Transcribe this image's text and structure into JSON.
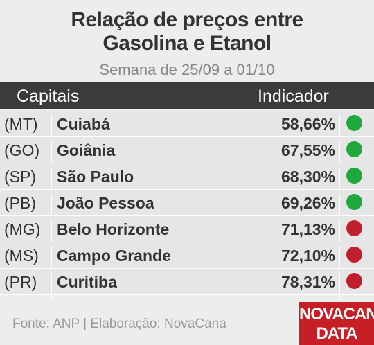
{
  "header": {
    "title_lines": [
      "Relação de preços entre",
      "Gasolina e Etanol"
    ],
    "subtitle": "Semana de 25/09 a 01/10"
  },
  "table": {
    "columns": [
      "Capitais",
      "Indicador"
    ],
    "rows": [
      {
        "state": "(MT)",
        "city": "Cuiabá",
        "value": "58,66%",
        "color": "#1fa83c"
      },
      {
        "state": "(GO)",
        "city": "Goiânia",
        "value": "67,55%",
        "color": "#1fa83c"
      },
      {
        "state": "(SP)",
        "city": "São Paulo",
        "value": "68,30%",
        "color": "#1fa83c"
      },
      {
        "state": "(PB)",
        "city": "João Pessoa",
        "value": "69,26%",
        "color": "#1fa83c"
      },
      {
        "state": "(MG)",
        "city": "Belo Horizonte",
        "value": "71,13%",
        "color": "#c0202e"
      },
      {
        "state": "(MS)",
        "city": "Campo Grande",
        "value": "72,10%",
        "color": "#c0202e"
      },
      {
        "state": "(PR)",
        "city": "Curitiba",
        "value": "78,31%",
        "color": "#c0202e"
      }
    ]
  },
  "footer": {
    "source": "Fonte: ANP | Elaboração: NovaCana",
    "logo": [
      "NOVACANA",
      "DATA"
    ]
  }
}
